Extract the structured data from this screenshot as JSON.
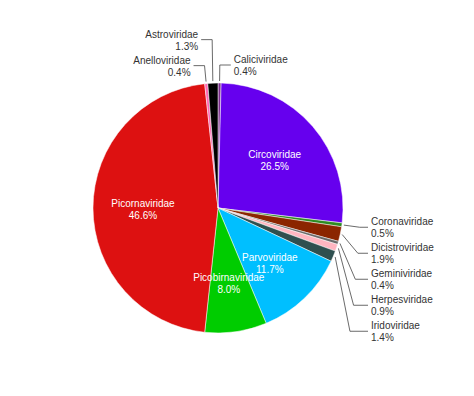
{
  "chart_data": {
    "type": "pie",
    "categories": [
      "Caliciviridae",
      "Circoviridae",
      "Coronaviridae",
      "Dicistroviridae",
      "Geminiviridae",
      "Herpesviridae",
      "Iridoviridae",
      "Parvoviridae",
      "Picobirnaviridae",
      "Picornaviridae",
      "Anelloviridae",
      "Astroviridae"
    ],
    "values": [
      0.4,
      26.5,
      0.5,
      1.9,
      0.4,
      0.9,
      1.4,
      11.7,
      8.0,
      46.6,
      0.4,
      1.3
    ],
    "value_labels": [
      "0.4%",
      "26.5%",
      "0.5%",
      "1.9%",
      "0.4%",
      "0.9%",
      "1.4%",
      "11.7%",
      "8.0%",
      "46.6%",
      "0.4%",
      "1.3%"
    ],
    "colors": [
      "#7b2d8b",
      "#6600ee",
      "#2e8b22",
      "#8b2500",
      "#696969",
      "#ffb6c1",
      "#2f4f4f",
      "#00bfff",
      "#00cc00",
      "#dd1111",
      "#ff69b4",
      "#000000"
    ],
    "data_labels": true
  }
}
